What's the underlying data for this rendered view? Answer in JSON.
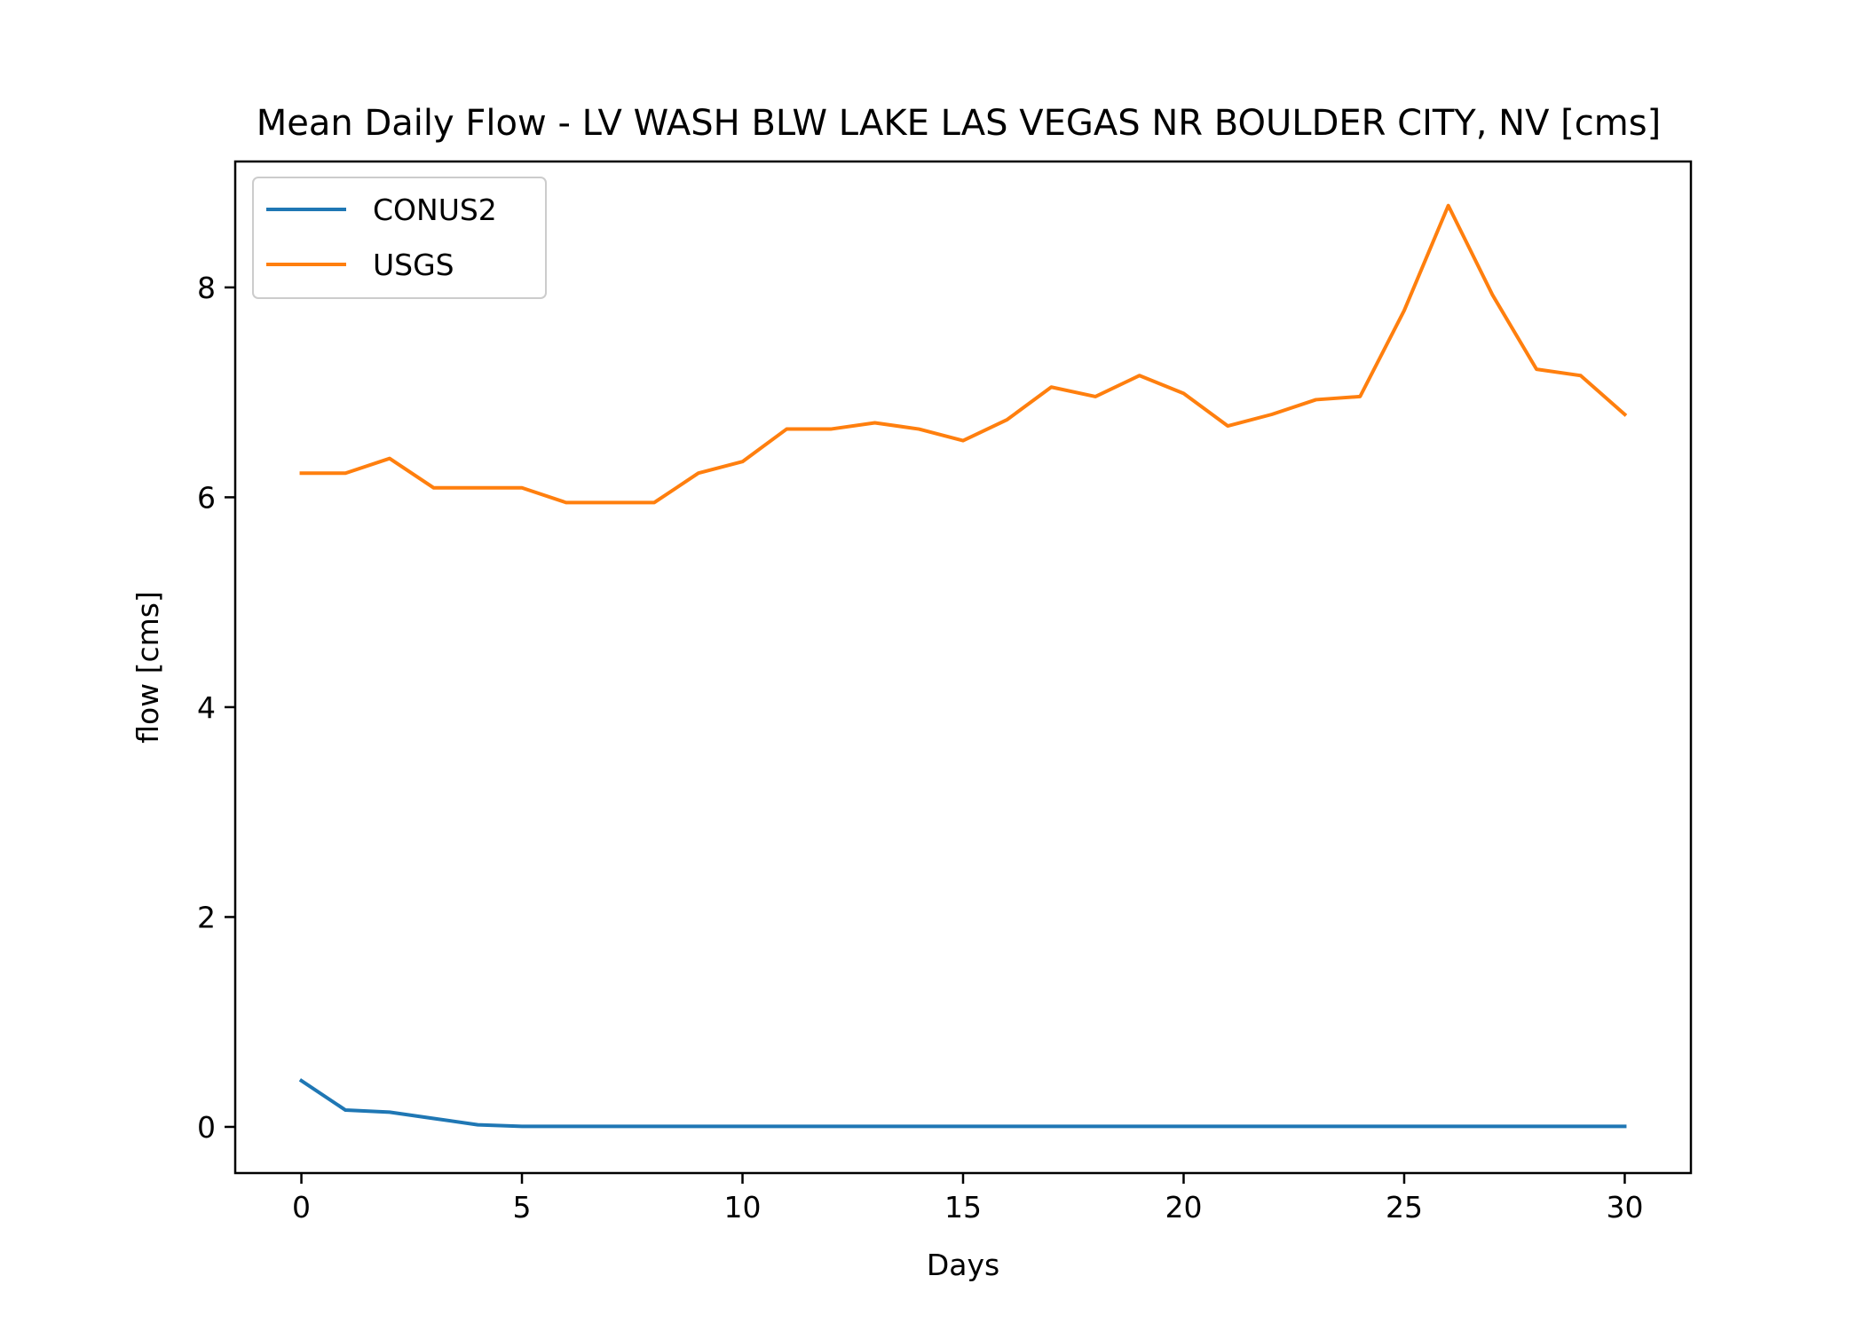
{
  "chart_data": {
    "type": "line",
    "title": "Mean Daily Flow - LV WASH BLW LAKE LAS VEGAS NR BOULDER CITY, NV [cms]",
    "xlabel": "Days",
    "ylabel": "flow [cms]",
    "xlim": [
      -1.5,
      31.5
    ],
    "ylim": [
      -0.44,
      9.2
    ],
    "xticks": [
      0,
      5,
      10,
      15,
      20,
      25,
      30
    ],
    "yticks": [
      0,
      2,
      4,
      6,
      8
    ],
    "grid": false,
    "legend_position": "upper-left",
    "x": [
      0,
      1,
      2,
      3,
      4,
      5,
      6,
      7,
      8,
      9,
      10,
      11,
      12,
      13,
      14,
      15,
      16,
      17,
      18,
      19,
      20,
      21,
      22,
      23,
      24,
      25,
      26,
      27,
      28,
      29,
      30
    ],
    "series": [
      {
        "name": "CONUS2",
        "color": "#1f77b4",
        "values": [
          0.44,
          0.16,
          0.14,
          0.08,
          0.02,
          0.005,
          0.005,
          0.005,
          0.005,
          0.005,
          0.005,
          0.005,
          0.005,
          0.005,
          0.005,
          0.005,
          0.005,
          0.005,
          0.005,
          0.005,
          0.005,
          0.005,
          0.005,
          0.005,
          0.005,
          0.005,
          0.005,
          0.005,
          0.005,
          0.005,
          0.005
        ]
      },
      {
        "name": "USGS",
        "color": "#ff7f0e",
        "values": [
          6.23,
          6.23,
          6.37,
          6.09,
          6.09,
          6.09,
          5.95,
          5.95,
          5.95,
          6.23,
          6.34,
          6.65,
          6.65,
          6.71,
          6.65,
          6.54,
          6.74,
          7.05,
          6.96,
          7.16,
          6.99,
          6.68,
          6.79,
          6.93,
          6.96,
          7.78,
          8.78,
          7.93,
          7.22,
          7.16,
          6.79
        ]
      }
    ]
  }
}
